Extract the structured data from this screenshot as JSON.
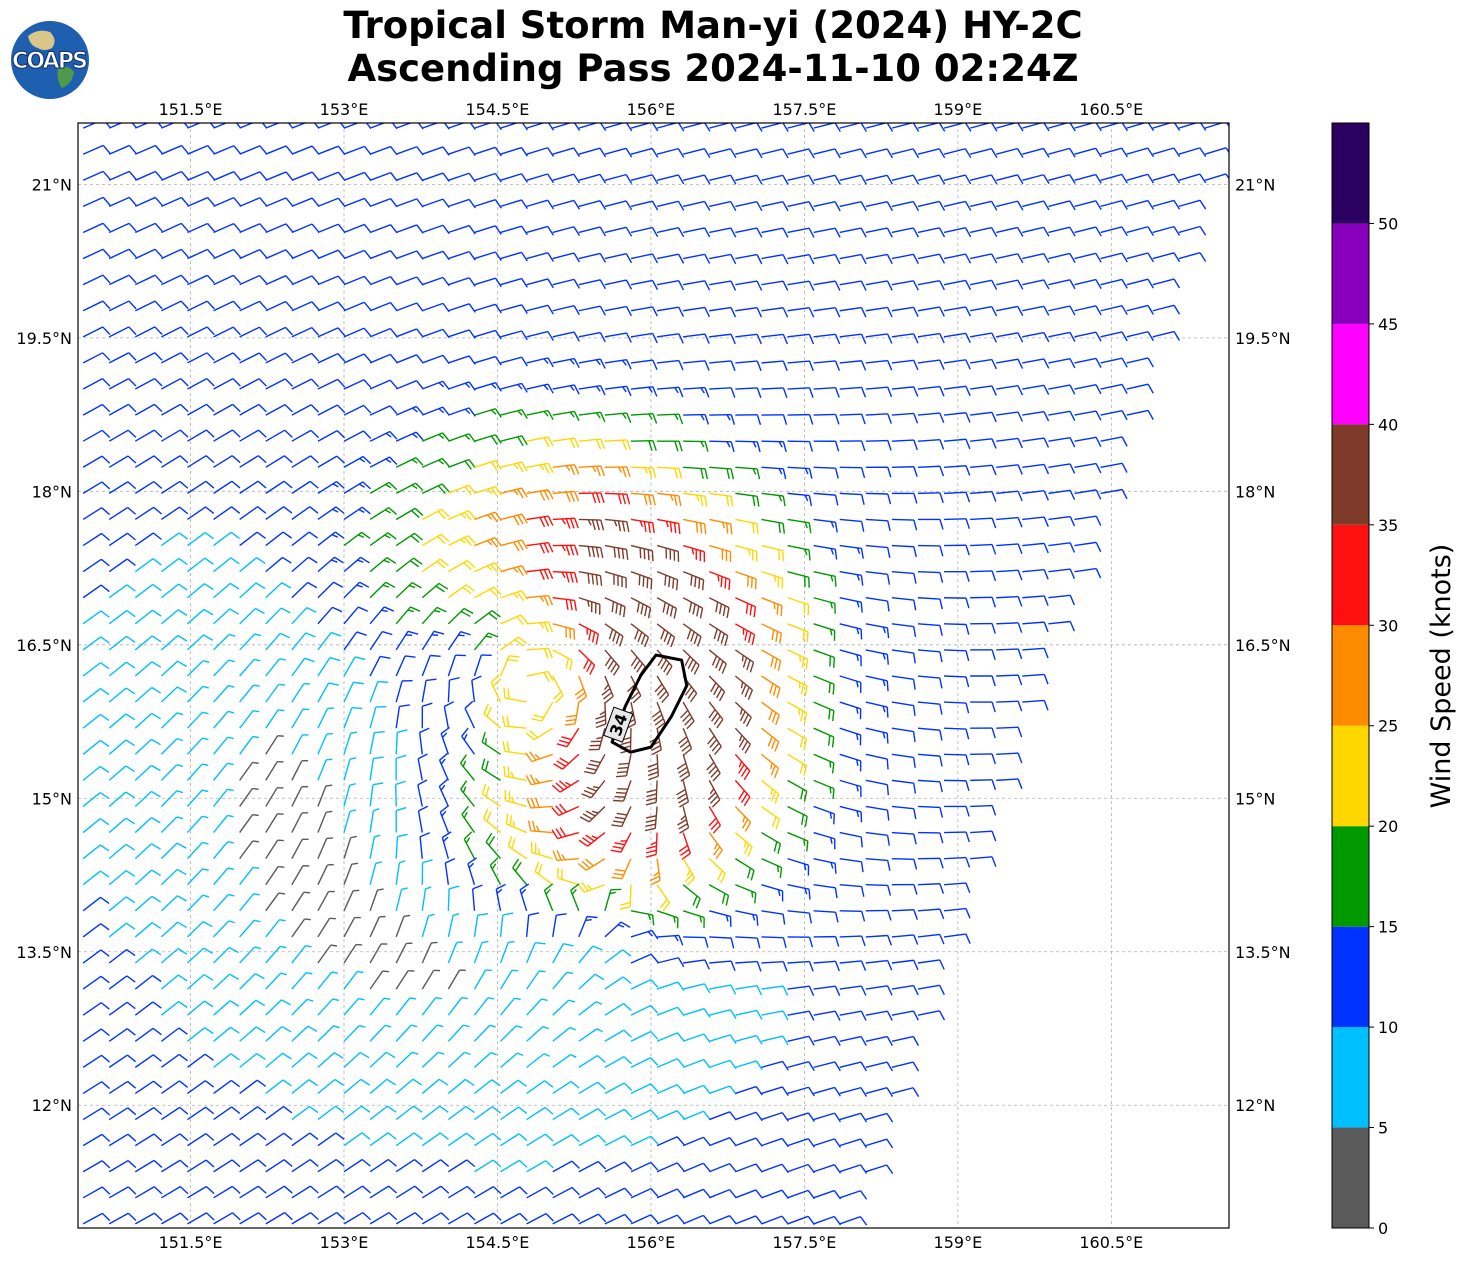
{
  "title": {
    "line1": "Tropical Storm Man-yi (2024) HY-2C",
    "line2": "Ascending Pass 2024-11-10 02:24Z"
  },
  "logo": {
    "text": "COAPS",
    "colors": {
      "ocean": "#1f5fb0",
      "land": "#d9c78a",
      "text": "#ffffff"
    }
  },
  "map": {
    "lon_range": [
      150.4,
      161.65
    ],
    "lat_range": [
      10.8,
      21.6
    ],
    "lon_ticks": [
      "151.5°E",
      "153°E",
      "154.5°E",
      "156°E",
      "157.5°E",
      "159°E",
      "160.5°E"
    ],
    "lon_tick_values": [
      151.5,
      153,
      154.5,
      156,
      157.5,
      159,
      160.5
    ],
    "lat_ticks": [
      "21°N",
      "19.5°N",
      "18°N",
      "16.5°N",
      "15°N",
      "13.5°N",
      "12°N"
    ],
    "lat_tick_values": [
      21,
      19.5,
      18,
      16.5,
      15,
      13.5,
      12
    ],
    "grid": true,
    "storm_center": {
      "lon": 154.8,
      "lat": 16.1
    },
    "contour_label": "34",
    "contour_34kt": [
      [
        156.05,
        16.4
      ],
      [
        156.3,
        16.35
      ],
      [
        156.35,
        16.1
      ],
      [
        156.2,
        15.8
      ],
      [
        156.0,
        15.5
      ],
      [
        155.8,
        15.45
      ],
      [
        155.62,
        15.55
      ],
      [
        155.75,
        15.9
      ],
      [
        155.9,
        16.2
      ]
    ]
  },
  "colorbar": {
    "title": "Wind Speed (knots)",
    "labels": [
      "0",
      "5",
      "10",
      "15",
      "20",
      "25",
      "30",
      "35",
      "40",
      "45",
      "50"
    ],
    "bins": [
      {
        "min": 0,
        "max": 5,
        "color": "#5a5a5a"
      },
      {
        "min": 5,
        "max": 10,
        "color": "#00bfff"
      },
      {
        "min": 10,
        "max": 15,
        "color": "#0033ff"
      },
      {
        "min": 15,
        "max": 20,
        "color": "#009900"
      },
      {
        "min": 20,
        "max": 25,
        "color": "#ffd700"
      },
      {
        "min": 25,
        "max": 30,
        "color": "#ff8c00"
      },
      {
        "min": 30,
        "max": 35,
        "color": "#ff1010"
      },
      {
        "min": 35,
        "max": 40,
        "color": "#7f3b2a"
      },
      {
        "min": 40,
        "max": 45,
        "color": "#ff00ff"
      },
      {
        "min": 45,
        "max": 50,
        "color": "#8800bb"
      },
      {
        "min": 50,
        "max": 55,
        "color": "#2a0060"
      }
    ]
  }
}
